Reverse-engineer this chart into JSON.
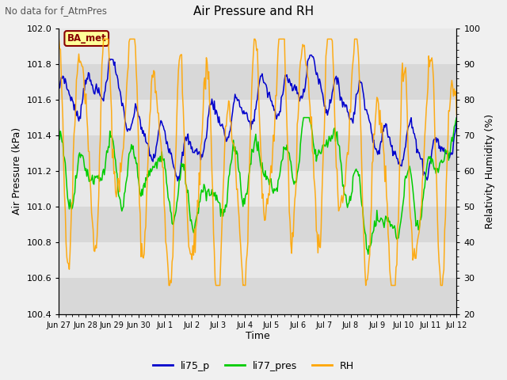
{
  "title": "Air Pressure and RH",
  "subtitle": "No data for f_AtmPres",
  "ylabel_left": "Air Pressure (kPa)",
  "ylabel_right": "Relativity Humidity (%)",
  "xlabel": "Time",
  "ylim_left": [
    100.4,
    102.0
  ],
  "ylim_right": [
    20,
    100
  ],
  "yticks_left": [
    100.4,
    100.6,
    100.8,
    101.0,
    101.2,
    101.4,
    101.6,
    101.8,
    102.0
  ],
  "yticks_right": [
    20,
    30,
    40,
    50,
    60,
    70,
    80,
    90,
    100
  ],
  "xtick_labels": [
    "Jun 27",
    "Jun 28",
    "Jun 29",
    "Jun 30",
    "Jul 1",
    "Jul 2",
    "Jul 3",
    "Jul 4",
    "Jul 5",
    "Jul 6",
    "Jul 7",
    "Jul 8",
    "Jul 9",
    "Jul 10",
    "Jul 11",
    "Jul 12"
  ],
  "legend_labels": [
    "li75_p",
    "li77_pres",
    "RH"
  ],
  "colors": {
    "li75_p": "#0000cc",
    "li77_pres": "#00cc00",
    "RH": "#ffa500"
  },
  "annotation_text": "BA_met",
  "annotation_color": "#880000",
  "annotation_bg": "#ffff99",
  "band_colors": [
    "#d8d8d8",
    "#e8e8e8"
  ],
  "fig_bg": "#f0f0f0",
  "n_points": 500
}
